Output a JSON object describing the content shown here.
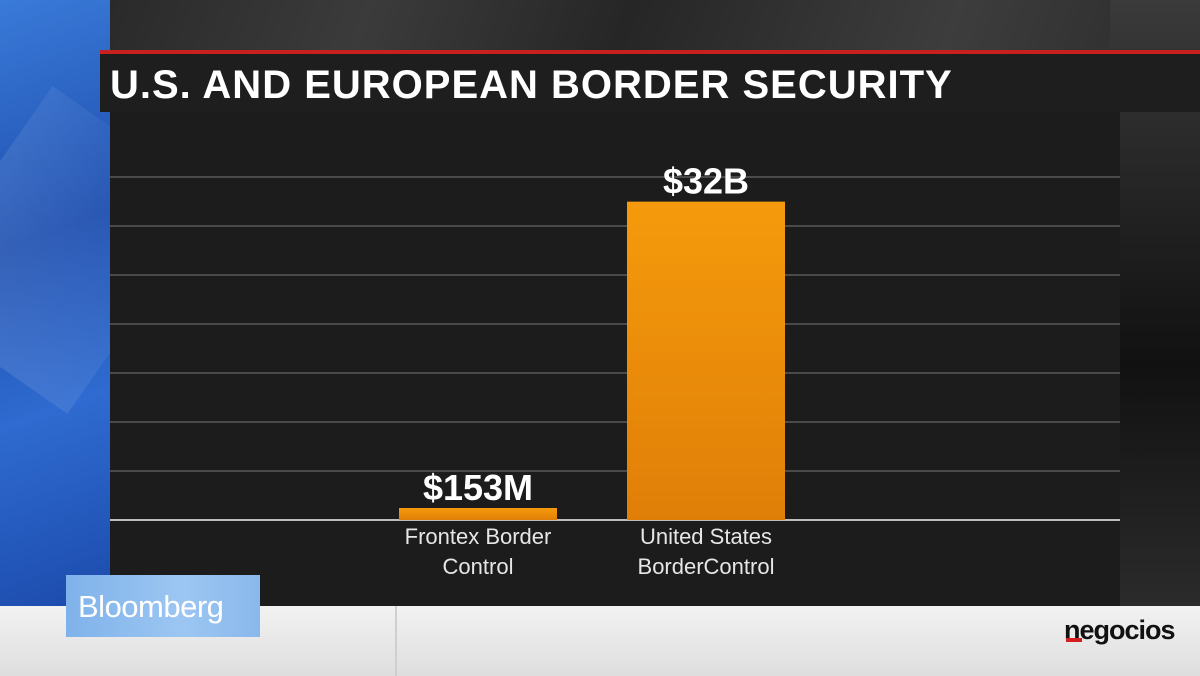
{
  "title": "U.S. AND EUROPEAN BORDER SECURITY",
  "brand": {
    "left_logo": "Bloomberg",
    "right_logo": "negocios"
  },
  "colors": {
    "bar": "#f0940a",
    "accent_red": "#c8201c"
  },
  "chart_data": {
    "type": "bar",
    "title": "U.S. AND EUROPEAN BORDER SECURITY",
    "categories": [
      "Frontex Border Control",
      "United States BorderControl"
    ],
    "category_lines": [
      [
        "Frontex Border",
        "Control"
      ],
      [
        "United States",
        "BorderControl"
      ]
    ],
    "values": [
      0.153,
      32
    ],
    "unit": "billion USD",
    "data_labels": [
      "$153M",
      "$32B"
    ],
    "ylim": [
      0,
      39
    ],
    "grid": true,
    "legend": "none"
  }
}
